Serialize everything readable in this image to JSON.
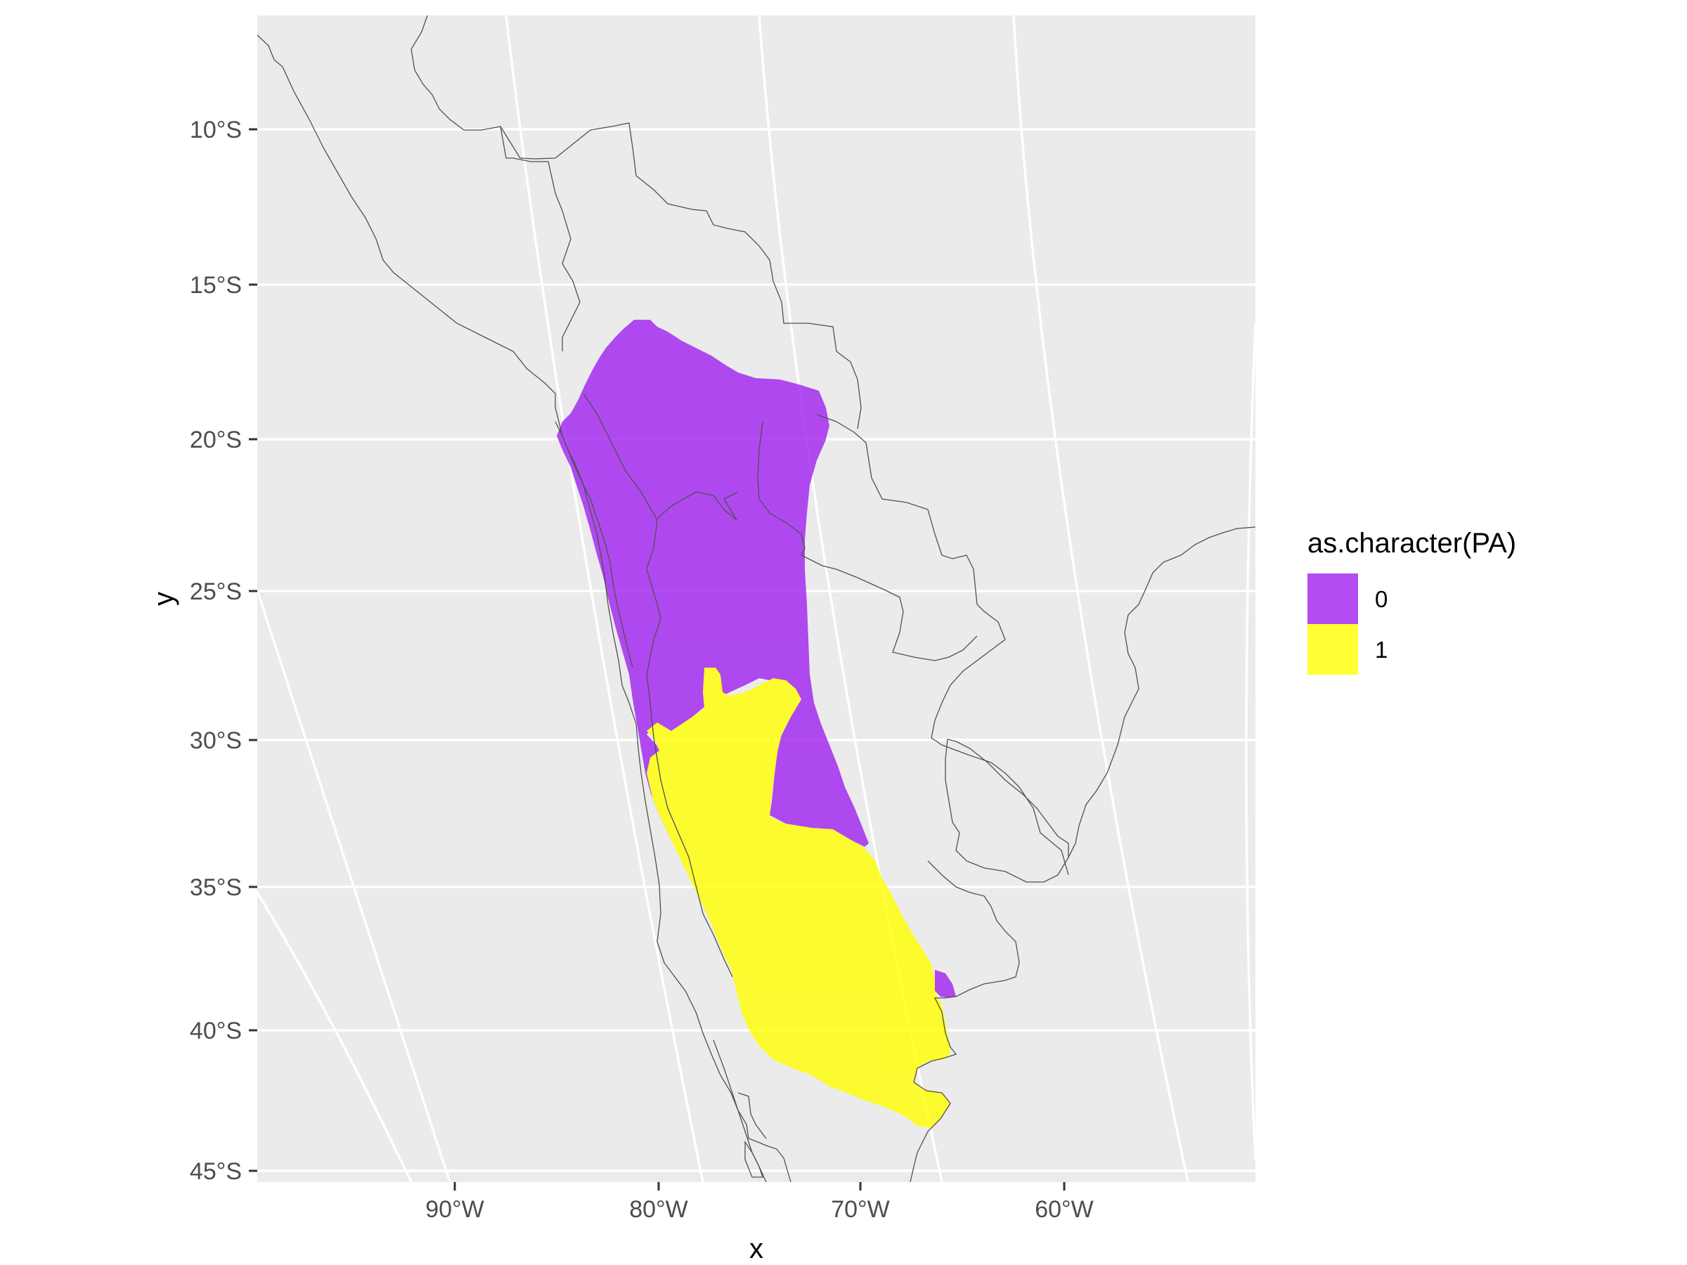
{
  "map": {
    "x_axis_title": "x",
    "y_axis_title": "y",
    "x_ticks": [
      "90°W",
      "80°W",
      "70°W",
      "60°W"
    ],
    "y_ticks": [
      "10°S",
      "15°S",
      "20°S",
      "25°S",
      "30°S",
      "35°S",
      "40°S",
      "45°S"
    ],
    "legend": {
      "title": "as.character(PA)",
      "items": [
        {
          "label": "0",
          "color": "#A020F0"
        },
        {
          "label": "1",
          "color": "#FFFF00"
        }
      ]
    },
    "colors": {
      "panel_background": "#EBEBEB",
      "grid": "#FFFFFF",
      "border": "#505050",
      "absent": "#A020F0",
      "present": "#FFFF00"
    },
    "fill_opacity": 0.8,
    "x_tick_values_deg": [
      -90,
      -80,
      -70,
      -60
    ],
    "y_tick_values_deg": [
      -10,
      -15,
      -20,
      -25,
      -30,
      -35,
      -40,
      -45
    ]
  }
}
